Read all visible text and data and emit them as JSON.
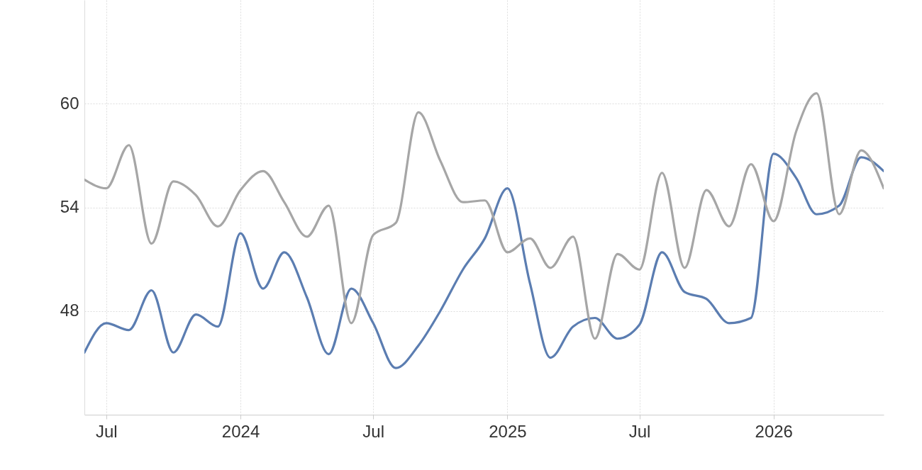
{
  "chart_data": {
    "type": "line",
    "x": [
      "2023-06",
      "2023-07",
      "2023-08",
      "2023-09",
      "2023-10",
      "2023-11",
      "2023-12",
      "2024-01",
      "2024-02",
      "2024-03",
      "2024-04",
      "2024-05",
      "2024-06",
      "2024-07",
      "2024-08",
      "2024-09",
      "2024-10",
      "2024-11",
      "2024-12",
      "2025-01",
      "2025-02",
      "2025-03",
      "2025-04",
      "2025-05",
      "2025-06",
      "2025-07",
      "2025-08",
      "2025-09",
      "2025-10",
      "2025-11",
      "2025-12",
      "2026-01",
      "2026-02",
      "2026-03",
      "2026-04",
      "2026-05",
      "2026-06"
    ],
    "series": [
      {
        "color": "#5b7db1",
        "values": [
          45.6,
          47.3,
          46.9,
          49.2,
          45.6,
          47.8,
          47.1,
          52.5,
          49.3,
          51.4,
          48.8,
          45.5,
          49.3,
          47.3,
          44.7,
          46.0,
          48.0,
          50.4,
          52.2,
          55.1,
          49.6,
          45.3,
          47.1,
          47.6,
          46.4,
          47.2,
          51.4,
          49.1,
          48.7,
          47.3,
          47.6,
          57.1,
          55.7,
          53.6,
          54.1,
          56.9,
          56.1
        ]
      },
      {
        "color": "#a6a6a6",
        "values": [
          55.6,
          55.1,
          57.6,
          51.9,
          55.5,
          54.7,
          52.9,
          55.0,
          56.1,
          54.3,
          52.3,
          54.1,
          47.3,
          52.4,
          53.1,
          59.5,
          56.7,
          54.3,
          54.4,
          51.4,
          52.2,
          50.5,
          52.3,
          46.4,
          51.3,
          50.4,
          56.0,
          50.5,
          55.0,
          52.9,
          56.5,
          53.2,
          58.4,
          60.6,
          53.6,
          57.3,
          55.1
        ]
      }
    ],
    "xlim": [
      "2023-06",
      "2026-06"
    ],
    "xticks": [
      {
        "value": "2023-07",
        "label": "Jul"
      },
      {
        "value": "2024-01",
        "label": "2024"
      },
      {
        "value": "2024-07",
        "label": "Jul"
      },
      {
        "value": "2025-01",
        "label": "2025"
      },
      {
        "value": "2025-07",
        "label": "Jul"
      },
      {
        "value": "2026-01",
        "label": "2026"
      }
    ],
    "ylim": [
      42,
      66
    ],
    "yticks": [
      48,
      54,
      60
    ],
    "grid": true
  }
}
